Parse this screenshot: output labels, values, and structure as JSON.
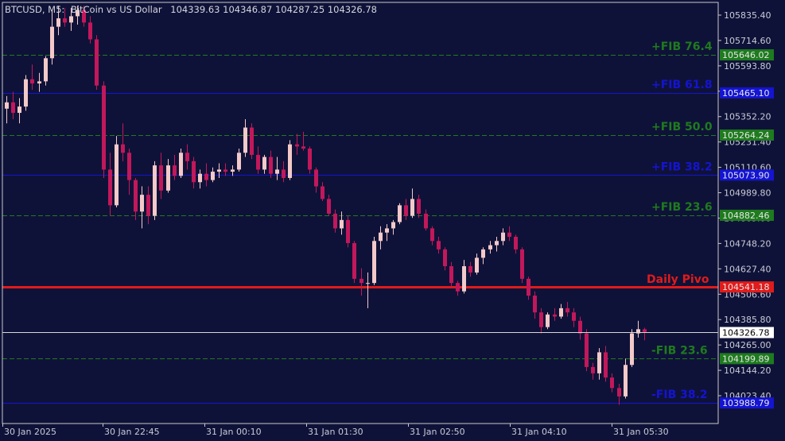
{
  "header": {
    "symbol": "BTCUSD, M5:",
    "description": "BitCoin vs US Dollar",
    "ohlc": "104339.63 104346.87 104287.25 104326.78"
  },
  "colors": {
    "background": "#0f1238",
    "frame": "#c0c0c0",
    "bull_candle": "#f3c9c9",
    "bear_candle": "#c2185b",
    "fib_green": "#1e7b1e",
    "fib_blue": "#1414d2",
    "pivot_red": "#e01b1b"
  },
  "chart_data": {
    "type": "candlestick",
    "symbol": "BTCUSD",
    "timeframe": "M5",
    "y_ticks": [
      "105835.40",
      "105714.60",
      "105593.80",
      "105473.00",
      "105352.20",
      "105231.40",
      "105110.60",
      "104989.80",
      "104869.00",
      "104748.20",
      "104627.40",
      "104506.60",
      "104385.80",
      "104265.00",
      "104144.20",
      "104023.40"
    ],
    "x_labels": [
      "30 Jan 2025",
      "30 Jan 22:45",
      "31 Jan 00:10",
      "31 Jan 01:30",
      "31 Jan 02:50",
      "31 Jan 04:10",
      "31 Jan 05:30"
    ],
    "last_price": {
      "value": 104326.78,
      "label": "104326.78"
    },
    "levels": [
      {
        "name": "+FIB 76.4",
        "price": 105646.02,
        "tag": "105646.02",
        "style": "dash",
        "kind": "green"
      },
      {
        "name": "+FIB 61.8",
        "price": 105465.1,
        "tag": "105465.10",
        "style": "solid",
        "kind": "blue"
      },
      {
        "name": "+FIB 50.0",
        "price": 105264.24,
        "tag": "105264.24",
        "style": "dash",
        "kind": "green"
      },
      {
        "name": "+FIB 38.2",
        "price": 105073.9,
        "tag": "105073.90",
        "style": "solid",
        "kind": "blue"
      },
      {
        "name": "+FIB 23.6",
        "price": 104882.46,
        "tag": "104882.46",
        "style": "dash",
        "kind": "green"
      },
      {
        "name": "Daily Pivo",
        "price": 104541.18,
        "tag": "104541.18",
        "style": "solid",
        "kind": "red"
      },
      {
        "name": "-FIB 23.6",
        "price": 104199.89,
        "tag": "104199.89",
        "style": "dash",
        "kind": "green"
      },
      {
        "name": "-FIB 38.2",
        "price": 103988.79,
        "tag": "103988.79",
        "style": "solid",
        "kind": "blue"
      }
    ],
    "candles": [
      [
        105390,
        105450,
        105320,
        105420
      ],
      [
        105420,
        105470,
        105340,
        105370
      ],
      [
        105370,
        105440,
        105320,
        105400
      ],
      [
        105400,
        105550,
        105380,
        105530
      ],
      [
        105530,
        105600,
        105480,
        105510
      ],
      [
        105510,
        105560,
        105470,
        105520
      ],
      [
        105520,
        105640,
        105500,
        105630
      ],
      [
        105630,
        105860,
        105600,
        105780
      ],
      [
        105780,
        105880,
        105740,
        105820
      ],
      [
        105820,
        105870,
        105780,
        105800
      ],
      [
        105800,
        105870,
        105760,
        105830
      ],
      [
        105830,
        105880,
        105790,
        105860
      ],
      [
        105860,
        105880,
        105780,
        105800
      ],
      [
        105800,
        105830,
        105700,
        105720
      ],
      [
        105720,
        105740,
        105480,
        105500
      ],
      [
        105500,
        105520,
        105060,
        105100
      ],
      [
        105100,
        105180,
        104880,
        104930
      ],
      [
        104930,
        105260,
        104920,
        105220
      ],
      [
        105220,
        105320,
        105140,
        105180
      ],
      [
        105180,
        105200,
        104980,
        105050
      ],
      [
        105050,
        105060,
        104860,
        104900
      ],
      [
        104900,
        105020,
        104820,
        104980
      ],
      [
        104980,
        105020,
        104840,
        104880
      ],
      [
        104880,
        105140,
        104860,
        105120
      ],
      [
        105120,
        105180,
        104960,
        105000
      ],
      [
        105000,
        105150,
        104990,
        105120
      ],
      [
        105120,
        105170,
        105050,
        105070
      ],
      [
        105070,
        105200,
        105060,
        105180
      ],
      [
        105180,
        105220,
        105100,
        105140
      ],
      [
        105140,
        105160,
        105010,
        105040
      ],
      [
        105040,
        105100,
        105010,
        105080
      ],
      [
        105080,
        105130,
        105020,
        105050
      ],
      [
        105050,
        105110,
        105040,
        105090
      ],
      [
        105090,
        105130,
        105060,
        105100
      ],
      [
        105100,
        105130,
        105070,
        105090
      ],
      [
        105090,
        105120,
        105070,
        105100
      ],
      [
        105100,
        105200,
        105090,
        105180
      ],
      [
        105180,
        105340,
        105160,
        105300
      ],
      [
        105300,
        105320,
        105150,
        105170
      ],
      [
        105170,
        105210,
        105080,
        105100
      ],
      [
        105100,
        105170,
        105080,
        105160
      ],
      [
        105160,
        105190,
        105060,
        105080
      ],
      [
        105080,
        105160,
        105050,
        105100
      ],
      [
        105100,
        105140,
        105040,
        105060
      ],
      [
        105060,
        105240,
        105050,
        105220
      ],
      [
        105220,
        105270,
        105170,
        105210
      ],
      [
        105210,
        105280,
        105190,
        105200
      ],
      [
        105200,
        105210,
        105080,
        105100
      ],
      [
        105100,
        105110,
        104990,
        105020
      ],
      [
        105020,
        105040,
        104950,
        104960
      ],
      [
        104960,
        104980,
        104880,
        104890
      ],
      [
        104890,
        104910,
        104800,
        104820
      ],
      [
        104820,
        104900,
        104790,
        104860
      ],
      [
        104860,
        104880,
        104730,
        104750
      ],
      [
        104750,
        104760,
        104560,
        104580
      ],
      [
        104580,
        104630,
        104500,
        104560
      ],
      [
        104560,
        104610,
        104440,
        104560
      ],
      [
        104560,
        104780,
        104550,
        104760
      ],
      [
        104760,
        104830,
        104720,
        104800
      ],
      [
        104800,
        104840,
        104760,
        104820
      ],
      [
        104820,
        104860,
        104790,
        104850
      ],
      [
        104850,
        104940,
        104840,
        104930
      ],
      [
        104930,
        104960,
        104860,
        104880
      ],
      [
        104880,
        105010,
        104870,
        104960
      ],
      [
        104960,
        104980,
        104870,
        104890
      ],
      [
        104890,
        104910,
        104810,
        104820
      ],
      [
        104820,
        104830,
        104740,
        104760
      ],
      [
        104760,
        104780,
        104700,
        104720
      ],
      [
        104720,
        104730,
        104620,
        104640
      ],
      [
        104640,
        104660,
        104540,
        104560
      ],
      [
        104560,
        104570,
        104500,
        104520
      ],
      [
        104520,
        104670,
        104510,
        104640
      ],
      [
        104640,
        104660,
        104590,
        104610
      ],
      [
        104610,
        104700,
        104600,
        104680
      ],
      [
        104680,
        104730,
        104650,
        104720
      ],
      [
        104720,
        104760,
        104700,
        104740
      ],
      [
        104740,
        104780,
        104710,
        104760
      ],
      [
        104760,
        104820,
        104740,
        104800
      ],
      [
        104800,
        104830,
        104760,
        104780
      ],
      [
        104780,
        104790,
        104700,
        104720
      ],
      [
        104720,
        104730,
        104560,
        104580
      ],
      [
        104580,
        104590,
        104480,
        104500
      ],
      [
        104500,
        104520,
        104390,
        104420
      ],
      [
        104420,
        104440,
        104320,
        104350
      ],
      [
        104350,
        104420,
        104340,
        104410
      ],
      [
        104410,
        104440,
        104380,
        104400
      ],
      [
        104400,
        104460,
        104390,
        104440
      ],
      [
        104440,
        104470,
        104400,
        104420
      ],
      [
        104420,
        104440,
        104350,
        104380
      ],
      [
        104380,
        104400,
        104290,
        104320
      ],
      [
        104320,
        104340,
        104140,
        104160
      ],
      [
        104160,
        104180,
        104100,
        104130
      ],
      [
        104130,
        104250,
        104100,
        104230
      ],
      [
        104230,
        104260,
        104090,
        104110
      ],
      [
        104110,
        104130,
        104040,
        104060
      ],
      [
        104060,
        104080,
        103980,
        104020
      ],
      [
        104020,
        104200,
        104010,
        104170
      ],
      [
        104170,
        104340,
        104160,
        104320
      ],
      [
        104320,
        104380,
        104300,
        104340
      ],
      [
        104339.63,
        104346.87,
        104287.25,
        104326.78
      ]
    ]
  }
}
